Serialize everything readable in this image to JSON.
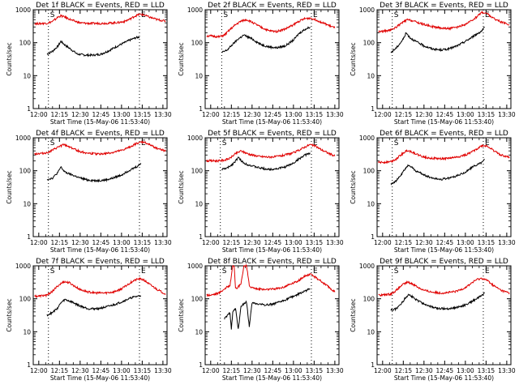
{
  "chart_data": {
    "type": "line",
    "layout": "3x3 grid",
    "shared": {
      "ylabel": "Counts/sec",
      "xlabel": "Start Time (15-May-06 11:53:40)",
      "x_ticks": [
        "12:00",
        "12:15",
        "12:30",
        "12:45",
        "13:00",
        "13:15",
        "13:30"
      ],
      "x_tick_minutes": [
        0,
        15,
        30,
        45,
        60,
        75,
        90
      ],
      "y_ticks": [
        "1",
        "10",
        "100",
        "1000"
      ],
      "y_tick_values": [
        1,
        10,
        100,
        1000
      ],
      "ylim": [
        1,
        1000
      ],
      "yscale": "log",
      "xlim_minutes_after_1200": [
        -4,
        93
      ],
      "x_units": "minutes after 12:00",
      "series_names": [
        "Events",
        "LLD"
      ],
      "series_colors": {
        "Events": "#000000",
        "LLD": "#e00000"
      }
    },
    "panels": [
      {
        "title": "Det 1f BLACK = Events, RED = LLD",
        "markers": [
          {
            "label": "S",
            "x": 7
          },
          {
            "label": "E",
            "x": 73
          }
        ],
        "series": [
          {
            "name": "Events",
            "x": [
              6,
              10,
              14,
              16,
              19,
              24,
              28,
              34,
              40,
              45,
              50,
              56,
              62,
              66,
              70,
              73
            ],
            "values": [
              45,
              55,
              80,
              110,
              85,
              60,
              45,
              42,
              42,
              45,
              55,
              75,
              100,
              120,
              140,
              150
            ]
          },
          {
            "name": "LLD",
            "x": [
              -3,
              0,
              6,
              10,
              14,
              16,
              19,
              24,
              30,
              36,
              42,
              50,
              58,
              62,
              66,
              70,
              73,
              76,
              80,
              86,
              92
            ],
            "values": [
              380,
              380,
              390,
              440,
              600,
              650,
              600,
              480,
              400,
              385,
              385,
              390,
              410,
              440,
              520,
              650,
              720,
              700,
              600,
              500,
              450
            ]
          }
        ]
      },
      {
        "title": "Det 2f BLACK = Events, RED = LLD",
        "markers": [
          {
            "label": "S",
            "x": 8
          },
          {
            "label": "E",
            "x": 73
          }
        ],
        "series": [
          {
            "name": "Events",
            "x": [
              8,
              12,
              16,
              20,
              24,
              30,
              36,
              42,
              48,
              54,
              60,
              64,
              68,
              72
            ],
            "values": [
              50,
              60,
              90,
              130,
              170,
              130,
              90,
              75,
              70,
              80,
              120,
              190,
              250,
              300
            ]
          },
          {
            "name": "LLD",
            "x": [
              -3,
              0,
              6,
              10,
              14,
              18,
              22,
              26,
              30,
              36,
              42,
              48,
              54,
              60,
              64,
              68,
              72,
              76,
              80,
              86,
              90
            ],
            "values": [
              160,
              160,
              150,
              170,
              250,
              350,
              450,
              500,
              420,
              300,
              230,
              220,
              260,
              350,
              450,
              530,
              560,
              500,
              420,
              330,
              280
            ]
          }
        ]
      },
      {
        "title": "Det 3f BLACK = Events, RED = LLD",
        "markers": [
          {
            "label": "S",
            "x": 7
          },
          {
            "label": "E",
            "x": 73
          }
        ],
        "series": [
          {
            "name": "Events",
            "x": [
              6,
              10,
              13,
              15,
              17,
              20,
              24,
              30,
              36,
              42,
              48,
              54,
              60,
              64,
              68,
              72,
              74
            ],
            "values": [
              50,
              70,
              100,
              130,
              200,
              140,
              110,
              80,
              65,
              60,
              65,
              80,
              110,
              140,
              180,
              230,
              300
            ]
          },
          {
            "name": "LLD",
            "x": [
              -3,
              0,
              6,
              10,
              14,
              18,
              22,
              26,
              30,
              36,
              42,
              48,
              54,
              60,
              64,
              68,
              72,
              76,
              80,
              86,
              92
            ],
            "values": [
              220,
              220,
              240,
              300,
              400,
              500,
              460,
              400,
              360,
              310,
              280,
              270,
              290,
              360,
              450,
              600,
              850,
              750,
              560,
              420,
              350
            ]
          }
        ]
      },
      {
        "title": "Det 4f BLACK = Events, RED = LLD",
        "markers": [
          {
            "label": "S",
            "x": 7
          },
          {
            "label": "E",
            "x": 73
          }
        ],
        "series": [
          {
            "name": "Events",
            "x": [
              6,
              10,
              14,
              16,
              19,
              24,
              30,
              36,
              42,
              48,
              54,
              60,
              64,
              68,
              72,
              74
            ],
            "values": [
              55,
              60,
              90,
              130,
              90,
              75,
              60,
              52,
              50,
              52,
              60,
              75,
              95,
              115,
              140,
              170
            ]
          },
          {
            "name": "LLD",
            "x": [
              -3,
              0,
              6,
              10,
              14,
              18,
              22,
              26,
              30,
              36,
              42,
              48,
              54,
              60,
              64,
              68,
              72,
              76,
              80,
              86,
              92
            ],
            "values": [
              330,
              330,
              350,
              420,
              520,
              620,
              540,
              450,
              380,
              340,
              320,
              330,
              360,
              410,
              480,
              580,
              700,
              750,
              620,
              480,
              400
            ]
          }
        ]
      },
      {
        "title": "Det 5f BLACK = Events, RED = LLD",
        "markers": [
          {
            "label": "S",
            "x": 7
          },
          {
            "label": "E",
            "x": 73
          }
        ],
        "series": [
          {
            "name": "Events",
            "x": [
              8,
              12,
              16,
              20,
              24,
              30,
              36,
              42,
              48,
              54,
              60,
              64,
              68,
              72
            ],
            "values": [
              110,
              120,
              160,
              250,
              170,
              140,
              120,
              110,
              115,
              130,
              170,
              230,
              290,
              350
            ]
          },
          {
            "name": "LLD",
            "x": [
              -3,
              0,
              6,
              10,
              14,
              18,
              22,
              26,
              30,
              36,
              42,
              48,
              54,
              60,
              64,
              68,
              72,
              76,
              80,
              86,
              90
            ],
            "values": [
              200,
              200,
              200,
              210,
              240,
              330,
              400,
              340,
              300,
              270,
              260,
              270,
              300,
              350,
              420,
              520,
              620,
              560,
              440,
              330,
              280
            ]
          }
        ]
      },
      {
        "title": "Det 6f BLACK = Events, RED = LLD",
        "markers": [
          {
            "label": "S",
            "x": 7
          },
          {
            "label": "E",
            "x": 73
          }
        ],
        "series": [
          {
            "name": "Events",
            "x": [
              6,
              10,
              14,
              16,
              19,
              24,
              30,
              36,
              42,
              48,
              54,
              60,
              64,
              68,
              72,
              74
            ],
            "values": [
              40,
              50,
              80,
              110,
              150,
              100,
              75,
              60,
              55,
              60,
              70,
              90,
              120,
              150,
              180,
              220
            ]
          },
          {
            "name": "LLD",
            "x": [
              -3,
              0,
              6,
              10,
              14,
              18,
              22,
              26,
              30,
              36,
              42,
              48,
              54,
              60,
              64,
              68,
              72,
              76,
              80,
              86,
              92
            ],
            "values": [
              180,
              180,
              190,
              230,
              320,
              420,
              360,
              300,
              260,
              240,
              230,
              240,
              260,
              300,
              360,
              450,
              580,
              560,
              420,
              300,
              250
            ]
          }
        ]
      },
      {
        "title": "Det 7f BLACK = Events, RED = LLD",
        "markers": [
          {
            "label": "S",
            "x": 7
          },
          {
            "label": "E",
            "x": 73
          }
        ],
        "series": [
          {
            "name": "Events",
            "x": [
              6,
              10,
              14,
              16,
              19,
              24,
              30,
              36,
              42,
              48,
              54,
              60,
              64,
              68,
              72,
              74
            ],
            "values": [
              32,
              38,
              55,
              75,
              95,
              80,
              60,
              50,
              50,
              55,
              65,
              80,
              95,
              110,
              120,
              125
            ]
          },
          {
            "name": "LLD",
            "x": [
              -3,
              0,
              6,
              10,
              14,
              18,
              22,
              26,
              30,
              36,
              42,
              48,
              54,
              60,
              64,
              68,
              72,
              76,
              80,
              86,
              92
            ],
            "values": [
              120,
              120,
              130,
              170,
              250,
              330,
              310,
              240,
              190,
              160,
              150,
              150,
              160,
              200,
              260,
              340,
              400,
              380,
              280,
              190,
              140
            ]
          }
        ]
      },
      {
        "title": "Det 8f BLACK = Events, RED = LLD",
        "markers": [
          {
            "label": "S",
            "x": 7
          },
          {
            "label": "E",
            "x": 73
          }
        ],
        "series": [
          {
            "name": "Events",
            "x": [
              10,
              12,
              14,
              15,
              16,
              17,
              18,
              20,
              22,
              24,
              26,
              28,
              30,
              34,
              40,
              46,
              52,
              58,
              64,
              68,
              72
            ],
            "values": [
              25,
              30,
              38,
              12,
              40,
              45,
              50,
              12,
              60,
              70,
              80,
              14,
              75,
              70,
              65,
              70,
              85,
              110,
              140,
              170,
              200
            ]
          },
          {
            "name": "LLD",
            "x": [
              -3,
              0,
              6,
              10,
              14,
              16,
              17,
              18,
              20,
              22,
              24,
              26,
              28,
              30,
              34,
              40,
              46,
              52,
              58,
              64,
              68,
              72,
              76,
              80,
              86,
              90
            ],
            "values": [
              130,
              130,
              150,
              200,
              260,
              1000,
              1000,
              200,
              230,
              280,
              1000,
              1000,
              250,
              220,
              200,
              190,
              200,
              220,
              280,
              360,
              480,
              560,
              450,
              340,
              220,
              160
            ]
          }
        ]
      },
      {
        "title": "Det 9f BLACK = Events, RED = LLD",
        "markers": [
          {
            "label": "S",
            "x": 7
          },
          {
            "label": "E",
            "x": 73
          }
        ],
        "series": [
          {
            "name": "Events",
            "x": [
              6,
              10,
              14,
              16,
              19,
              24,
              30,
              36,
              42,
              48,
              54,
              60,
              64,
              68,
              72,
              74
            ],
            "values": [
              45,
              50,
              75,
              100,
              140,
              95,
              70,
              55,
              50,
              50,
              55,
              65,
              80,
              100,
              125,
              150
            ]
          },
          {
            "name": "LLD",
            "x": [
              -3,
              0,
              6,
              10,
              14,
              18,
              22,
              26,
              30,
              36,
              42,
              48,
              54,
              60,
              64,
              68,
              72,
              76,
              80,
              86,
              92
            ],
            "values": [
              130,
              130,
              140,
              180,
              260,
              320,
              280,
              220,
              180,
              160,
              150,
              155,
              170,
              220,
              290,
              380,
              420,
              360,
              260,
              180,
              150
            ]
          }
        ]
      }
    ]
  }
}
